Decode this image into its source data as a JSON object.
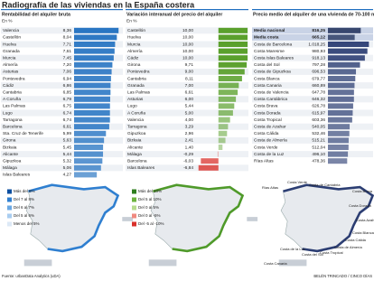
{
  "title": "Radiografía de las viviendas en la España costera",
  "source": "Fuente: urbanData Analytics (uDA)",
  "credit": "BELÉN TRINCADO / CINCO DÍAS",
  "chart_data": [
    {
      "type": "bar",
      "title": "Rentabilidad del alquiler bruta",
      "subtitle": "En %",
      "color": "#1f6fc0",
      "xlim": [
        0,
        9
      ],
      "categories": [
        "Valencia",
        "Castellón",
        "Huelva",
        "Granada",
        "Murcia",
        "Almería",
        "Asturias",
        "Pontevedra",
        "Cádiz",
        "Cantabria",
        "A Coruña",
        "Las Palmas",
        "Lugo",
        "Tarragona",
        "Barcelona",
        "Sta. Cruz de Tenerife",
        "Girona",
        "Bizkaia",
        "Alicante",
        "Gipuzkoa",
        "Málaga",
        "Islas Baleares"
      ],
      "values": [
        8.36,
        8.04,
        7.71,
        7.61,
        7.45,
        7.2,
        7.06,
        6.94,
        6.86,
        6.85,
        6.79,
        6.75,
        6.74,
        6.74,
        6.61,
        5.99,
        5.63,
        5.45,
        5.44,
        5.32,
        5.06,
        4.27
      ],
      "value_labels": [
        "8,36",
        "8,04",
        "7,71",
        "7,61",
        "7,45",
        "7,20",
        "7,06",
        "6,94",
        "6,86",
        "6,85",
        "6,79",
        "6,75",
        "6,74",
        "6,74",
        "6,61",
        "5,99",
        "5,63",
        "5,45",
        "5,44",
        "5,32",
        "5,06",
        "4,27"
      ]
    },
    {
      "type": "bar",
      "title": "Variación interanual del precio del alquiler",
      "subtitle": "En %",
      "color": "#5aa02c",
      "negative_color": "#d9312b",
      "xlim": [
        -8,
        10
      ],
      "categories": [
        "Castellón",
        "Huelva",
        "Murcia",
        "Almería",
        "Cádiz",
        "Girona",
        "Pontevedra",
        "Cantabria",
        "Granada",
        "Las Palmas",
        "Asturias",
        "Lugo",
        "A Coruña",
        "Valencia",
        "Tarragona",
        "Gipuzkoa",
        "Bizkaia",
        "Alicante",
        "Málaga",
        "Barcelona",
        "Islas Baleares"
      ],
      "values": [
        10.0,
        10.0,
        10.0,
        10.0,
        10.0,
        9.71,
        9.0,
        8.11,
        7.0,
        6.61,
        6.0,
        5.44,
        5.0,
        4.0,
        3.29,
        2.96,
        2.41,
        1.4,
        -0.29,
        -6.03,
        -6.84
      ],
      "value_labels": [
        "10,00",
        "10,00",
        "10,00",
        "10,00",
        "10,00",
        "9,71",
        "9,00",
        "8,11",
        "7,00",
        "6,61",
        "6,00",
        "5,44",
        "5,00",
        "4,00",
        "3,29",
        "2,96",
        "2,41",
        "1,40",
        "-0,29",
        "-6,03",
        "-6,84"
      ]
    },
    {
      "type": "bar",
      "title": "Precio medio del alquiler de una vivienda de 70-100 m² En €/mes",
      "color": "#2c3e73",
      "highlight_color": "#1a2a55",
      "highlight_count": 2,
      "xlim": [
        0,
        1100
      ],
      "categories": [
        "Media nacional",
        "Media costa",
        "Costa de Barcelona",
        "Costa Maresme",
        "Costa Islas Baleares",
        "Costa del Sol",
        "Costa de Gipuzkoa",
        "Costa Blanca",
        "Costa Canaria",
        "Costa de Valencia",
        "Costa Cantábrica",
        "Costa Brava",
        "Costa Dorada",
        "Costa Tropical",
        "Costa de Azahar",
        "Costa Cálida",
        "Costa de Almería",
        "Costa Verde",
        "Costa de la Luz",
        "Rías Altas"
      ],
      "values": [
        816.25,
        665.12,
        1018.25,
        980.93,
        918.13,
        797.28,
        696.53,
        679.77,
        660.89,
        647.78,
        646.32,
        626.78,
        615.97,
        603.36,
        540.05,
        532.46,
        515.21,
        512.04,
        496.1,
        478.36
      ],
      "value_labels": [
        "816,25",
        "665,12",
        "1.018,25",
        "980,93",
        "918,13",
        "797,28",
        "696,53",
        "679,77",
        "660,89",
        "647,78",
        "646,32",
        "626,78",
        "615,97",
        "603,36",
        "540,05",
        "532,46",
        "515,21",
        "512,04",
        "496,10",
        "478,36"
      ]
    }
  ],
  "maps": [
    {
      "legend": [
        {
          "label": "Más del 8%",
          "color": "#0d4fa0"
        },
        {
          "label": "Del 7 al 8%",
          "color": "#2f7fd0"
        },
        {
          "label": "Del 6 al 7%",
          "color": "#6aa8e4"
        },
        {
          "label": "Del 5 al 6%",
          "color": "#a9cdf0"
        },
        {
          "label": "Menos del 5%",
          "color": "#dde9f6"
        }
      ]
    },
    {
      "legend": [
        {
          "label": "Más del 10%",
          "color": "#2e7d1e"
        },
        {
          "label": "Del 5 al 10%",
          "color": "#6db33f"
        },
        {
          "label": "Del 0 al 5%",
          "color": "#b7dc8e"
        },
        {
          "label": "Del 0 al -5%",
          "color": "#f08a80"
        },
        {
          "label": "Del -5 al -10%",
          "color": "#d9312b"
        }
      ]
    },
    {
      "labels": [
        "Rías Altas",
        "Costa Verde",
        "Costa de Cantabria",
        "Costa Brava",
        "Costa Dorada",
        "Costa Azahar",
        "Costa Blanca",
        "Costa Cálida",
        "Costa de Almería",
        "Costa Tropical",
        "Costa del Sol",
        "Costa de la Luz",
        "Costa Canaria"
      ]
    }
  ]
}
